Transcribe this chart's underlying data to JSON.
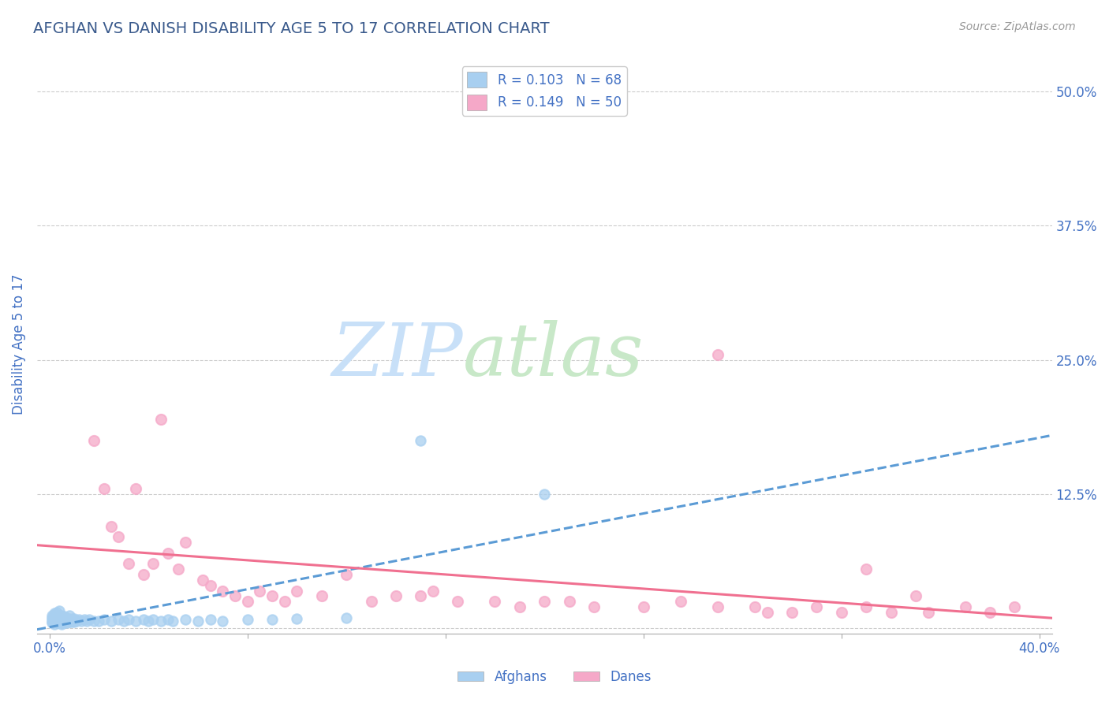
{
  "title": "AFGHAN VS DANISH DISABILITY AGE 5 TO 17 CORRELATION CHART",
  "source": "Source: ZipAtlas.com",
  "ylabel": "Disability Age 5 to 17",
  "xlim": [
    -0.005,
    0.405
  ],
  "ylim": [
    -0.005,
    0.535
  ],
  "xtick_vals": [
    0.0,
    0.4
  ],
  "ytick_vals": [
    0.0,
    0.125,
    0.25,
    0.375,
    0.5
  ],
  "yticklabels": [
    "",
    "12.5%",
    "25.0%",
    "37.5%",
    "50.0%"
  ],
  "afghan_color": "#a8cff0",
  "danish_color": "#f5a8c8",
  "afghan_line_color": "#5b9bd5",
  "danish_line_color": "#f07090",
  "afghan_R": 0.103,
  "afghan_N": 68,
  "danish_R": 0.149,
  "danish_N": 50,
  "title_color": "#3a5a8c",
  "label_color": "#4472c4",
  "grid_color": "#cccccc",
  "background_color": "#ffffff",
  "watermark_zip_color": "#c8e0f8",
  "watermark_atlas_color": "#c8e8c8",
  "afghan_scatter_x": [
    0.001,
    0.001,
    0.001,
    0.001,
    0.001,
    0.002,
    0.002,
    0.002,
    0.002,
    0.002,
    0.003,
    0.003,
    0.003,
    0.003,
    0.003,
    0.004,
    0.004,
    0.004,
    0.004,
    0.004,
    0.005,
    0.005,
    0.005,
    0.005,
    0.006,
    0.006,
    0.006,
    0.006,
    0.007,
    0.007,
    0.007,
    0.008,
    0.008,
    0.008,
    0.009,
    0.009,
    0.01,
    0.01,
    0.011,
    0.012,
    0.013,
    0.014,
    0.015,
    0.016,
    0.018,
    0.02,
    0.022,
    0.025,
    0.028,
    0.03,
    0.032,
    0.035,
    0.038,
    0.04,
    0.042,
    0.045,
    0.048,
    0.05,
    0.055,
    0.06,
    0.065,
    0.07,
    0.08,
    0.09,
    0.1,
    0.12,
    0.15,
    0.2
  ],
  "afghan_scatter_y": [
    0.005,
    0.006,
    0.008,
    0.01,
    0.012,
    0.004,
    0.006,
    0.008,
    0.01,
    0.014,
    0.005,
    0.007,
    0.008,
    0.01,
    0.015,
    0.005,
    0.007,
    0.009,
    0.012,
    0.016,
    0.004,
    0.006,
    0.008,
    0.012,
    0.005,
    0.007,
    0.009,
    0.011,
    0.005,
    0.007,
    0.01,
    0.006,
    0.008,
    0.012,
    0.006,
    0.009,
    0.006,
    0.009,
    0.007,
    0.008,
    0.007,
    0.008,
    0.007,
    0.008,
    0.007,
    0.007,
    0.008,
    0.007,
    0.008,
    0.007,
    0.008,
    0.007,
    0.008,
    0.007,
    0.008,
    0.007,
    0.008,
    0.007,
    0.008,
    0.007,
    0.008,
    0.007,
    0.008,
    0.008,
    0.009,
    0.01,
    0.175,
    0.125
  ],
  "danish_scatter_x": [
    0.018,
    0.022,
    0.025,
    0.028,
    0.032,
    0.035,
    0.038,
    0.042,
    0.045,
    0.048,
    0.052,
    0.055,
    0.062,
    0.065,
    0.07,
    0.075,
    0.08,
    0.085,
    0.09,
    0.095,
    0.1,
    0.11,
    0.12,
    0.13,
    0.14,
    0.15,
    0.155,
    0.165,
    0.18,
    0.19,
    0.2,
    0.21,
    0.22,
    0.24,
    0.255,
    0.27,
    0.285,
    0.3,
    0.31,
    0.32,
    0.33,
    0.34,
    0.355,
    0.37,
    0.38,
    0.39,
    0.33,
    0.29,
    0.27,
    0.35
  ],
  "danish_scatter_y": [
    0.175,
    0.13,
    0.095,
    0.085,
    0.06,
    0.13,
    0.05,
    0.06,
    0.195,
    0.07,
    0.055,
    0.08,
    0.045,
    0.04,
    0.035,
    0.03,
    0.025,
    0.035,
    0.03,
    0.025,
    0.035,
    0.03,
    0.05,
    0.025,
    0.03,
    0.03,
    0.035,
    0.025,
    0.025,
    0.02,
    0.025,
    0.025,
    0.02,
    0.02,
    0.025,
    0.02,
    0.02,
    0.015,
    0.02,
    0.015,
    0.02,
    0.015,
    0.015,
    0.02,
    0.015,
    0.02,
    0.055,
    0.015,
    0.255,
    0.03
  ]
}
